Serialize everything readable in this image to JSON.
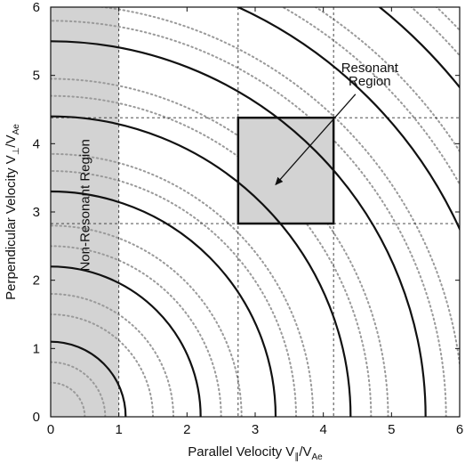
{
  "chart_data": {
    "type": "line",
    "title": "",
    "xlabel": {
      "text": "Parallel Velocity V",
      "subscript": "∥",
      "suffix": "/V",
      "suffix_sub": "Ae"
    },
    "ylabel": {
      "text": "Perpendicular Velocity V",
      "subscript": "⊥",
      "suffix": "/V",
      "suffix_sub": "Ae"
    },
    "xlim": [
      0,
      6
    ],
    "ylim": [
      0,
      6
    ],
    "xticks": [
      "0",
      "1",
      "2",
      "3",
      "4",
      "5",
      "6"
    ],
    "yticks": [
      "0",
      "1",
      "2",
      "3",
      "4",
      "5",
      "6"
    ],
    "grid": false,
    "solid_contour_radii": [
      1.1,
      2.2,
      3.3,
      4.4,
      5.5,
      6.6,
      7.7
    ],
    "dotted_contour_radii": [
      0.5,
      0.8,
      1.5,
      1.8,
      2.5,
      2.8,
      3.6,
      3.85,
      4.7,
      4.95,
      5.8,
      6.05,
      6.9,
      7.15,
      8.0,
      8.25
    ],
    "colors": {
      "solid_contour": "#111111",
      "dotted_contour": "#9a9a9a",
      "shaded_region": "#d3d3d3",
      "axis": "#111111",
      "guide_lines": "#333333"
    },
    "non_resonant_region": {
      "x_range": [
        0,
        1
      ],
      "label": "Non-Resonant Region"
    },
    "resonant_region": {
      "x_range": [
        2.75,
        4.15
      ],
      "y_range": [
        2.83,
        4.38
      ],
      "label_line1": "Resonant",
      "label_line2": "Region",
      "arrow_from": [
        4.55,
        4.75
      ],
      "arrow_to": [
        3.3,
        3.4
      ]
    },
    "dashed_guides": {
      "vertical_x": [
        1.0,
        2.75,
        4.15
      ],
      "horizontal_y": [
        2.83,
        4.38
      ]
    }
  }
}
